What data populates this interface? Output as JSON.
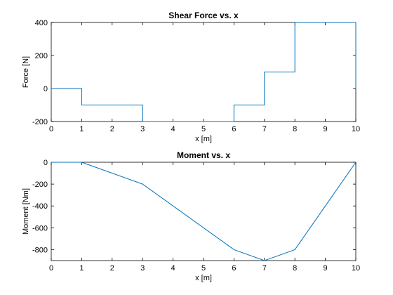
{
  "chart_data": [
    {
      "type": "line",
      "step": true,
      "title": "Shear Force vs. x",
      "xlabel": "x [m]",
      "ylabel": "Force [N]",
      "xlim": [
        0,
        10
      ],
      "ylim": [
        -200,
        400
      ],
      "xticks": [
        "0",
        "1",
        "2",
        "3",
        "4",
        "5",
        "6",
        "7",
        "8",
        "9",
        "10"
      ],
      "yticks": [
        "-200",
        "0",
        "200",
        "400"
      ],
      "series": [
        {
          "color": "#0072BD",
          "x": [
            0,
            1,
            1,
            3,
            3,
            6,
            6,
            7,
            7,
            8,
            8,
            10,
            10
          ],
          "y": [
            0,
            0,
            -100,
            -100,
            -200,
            -200,
            -100,
            -100,
            100,
            100,
            400,
            400,
            0
          ]
        }
      ]
    },
    {
      "type": "line",
      "title": "Moment vs. x",
      "xlabel": "x [m]",
      "ylabel": "Moment [Nm]",
      "xlim": [
        0,
        10
      ],
      "ylim": [
        -900,
        0
      ],
      "xticks": [
        "0",
        "1",
        "2",
        "3",
        "4",
        "5",
        "6",
        "7",
        "8",
        "9",
        "10"
      ],
      "yticks": [
        "-800",
        "-600",
        "-400",
        "-200",
        "0"
      ],
      "series": [
        {
          "color": "#0072BD",
          "x": [
            0,
            1,
            3,
            6,
            7,
            8,
            10
          ],
          "y": [
            0,
            0,
            -200,
            -800,
            -900,
            -800,
            0
          ]
        }
      ]
    }
  ]
}
